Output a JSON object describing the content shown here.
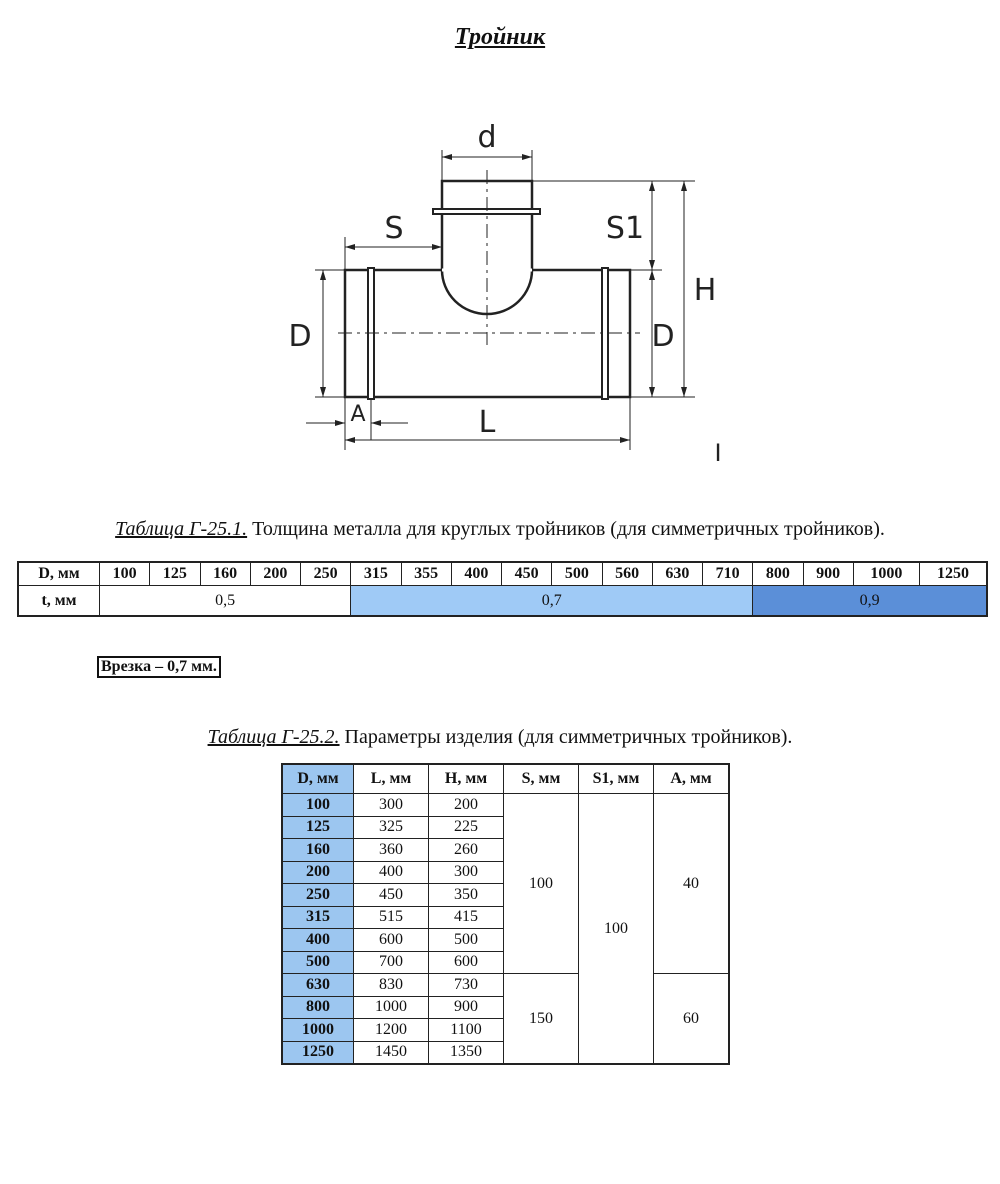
{
  "title": "Тройник",
  "drawing": {
    "labels": {
      "d": "d",
      "S": "S",
      "S1": "S1",
      "H": "H",
      "D_left": "D",
      "D_right": "D",
      "A": "A",
      "L": "L",
      "mark": "I"
    }
  },
  "table1": {
    "caption_ref": "Таблица Г-25.1.",
    "caption_text": " Толщина металла для круглых тройников (для симметричных тройников).",
    "row_header_d": "D, мм",
    "row_header_t": "t, мм",
    "diameters": [
      "100",
      "125",
      "160",
      "200",
      "250",
      "315",
      "355",
      "400",
      "450",
      "500",
      "560",
      "630",
      "710",
      "800",
      "900",
      "1000",
      "1250"
    ],
    "thickness_groups": [
      {
        "value": "0,5",
        "span": 5,
        "color": "#ffffff"
      },
      {
        "value": "0,7",
        "span": 8,
        "color": "#9fcaf6"
      },
      {
        "value": "0,9",
        "span": 4,
        "color": "#5b8fd8"
      }
    ]
  },
  "note": "Врезка – 0,7 мм.",
  "table2": {
    "caption_ref": "Таблица Г-25.2.",
    "caption_text": " Параметры изделия (для симметричных тройников).",
    "headers": [
      "D, мм",
      "L, мм",
      "H, мм",
      "S, мм",
      "S1, мм",
      "A, мм"
    ],
    "rows": [
      [
        "100",
        "300",
        "200"
      ],
      [
        "125",
        "325",
        "225"
      ],
      [
        "160",
        "360",
        "260"
      ],
      [
        "200",
        "400",
        "300"
      ],
      [
        "250",
        "450",
        "350"
      ],
      [
        "315",
        "515",
        "415"
      ],
      [
        "400",
        "600",
        "500"
      ],
      [
        "500",
        "700",
        "600"
      ],
      [
        "630",
        "830",
        "730"
      ],
      [
        "800",
        "1000",
        "900"
      ],
      [
        "1000",
        "1200",
        "1100"
      ],
      [
        "1250",
        "1450",
        "1350"
      ]
    ],
    "S_groups": [
      {
        "value": "100",
        "rows": 8
      },
      {
        "value": "150",
        "rows": 4
      }
    ],
    "S1_value": "100",
    "A_groups": [
      {
        "value": "40",
        "rows": 8
      },
      {
        "value": "60",
        "rows": 4
      }
    ],
    "accent_color": "#9cc6f0"
  }
}
